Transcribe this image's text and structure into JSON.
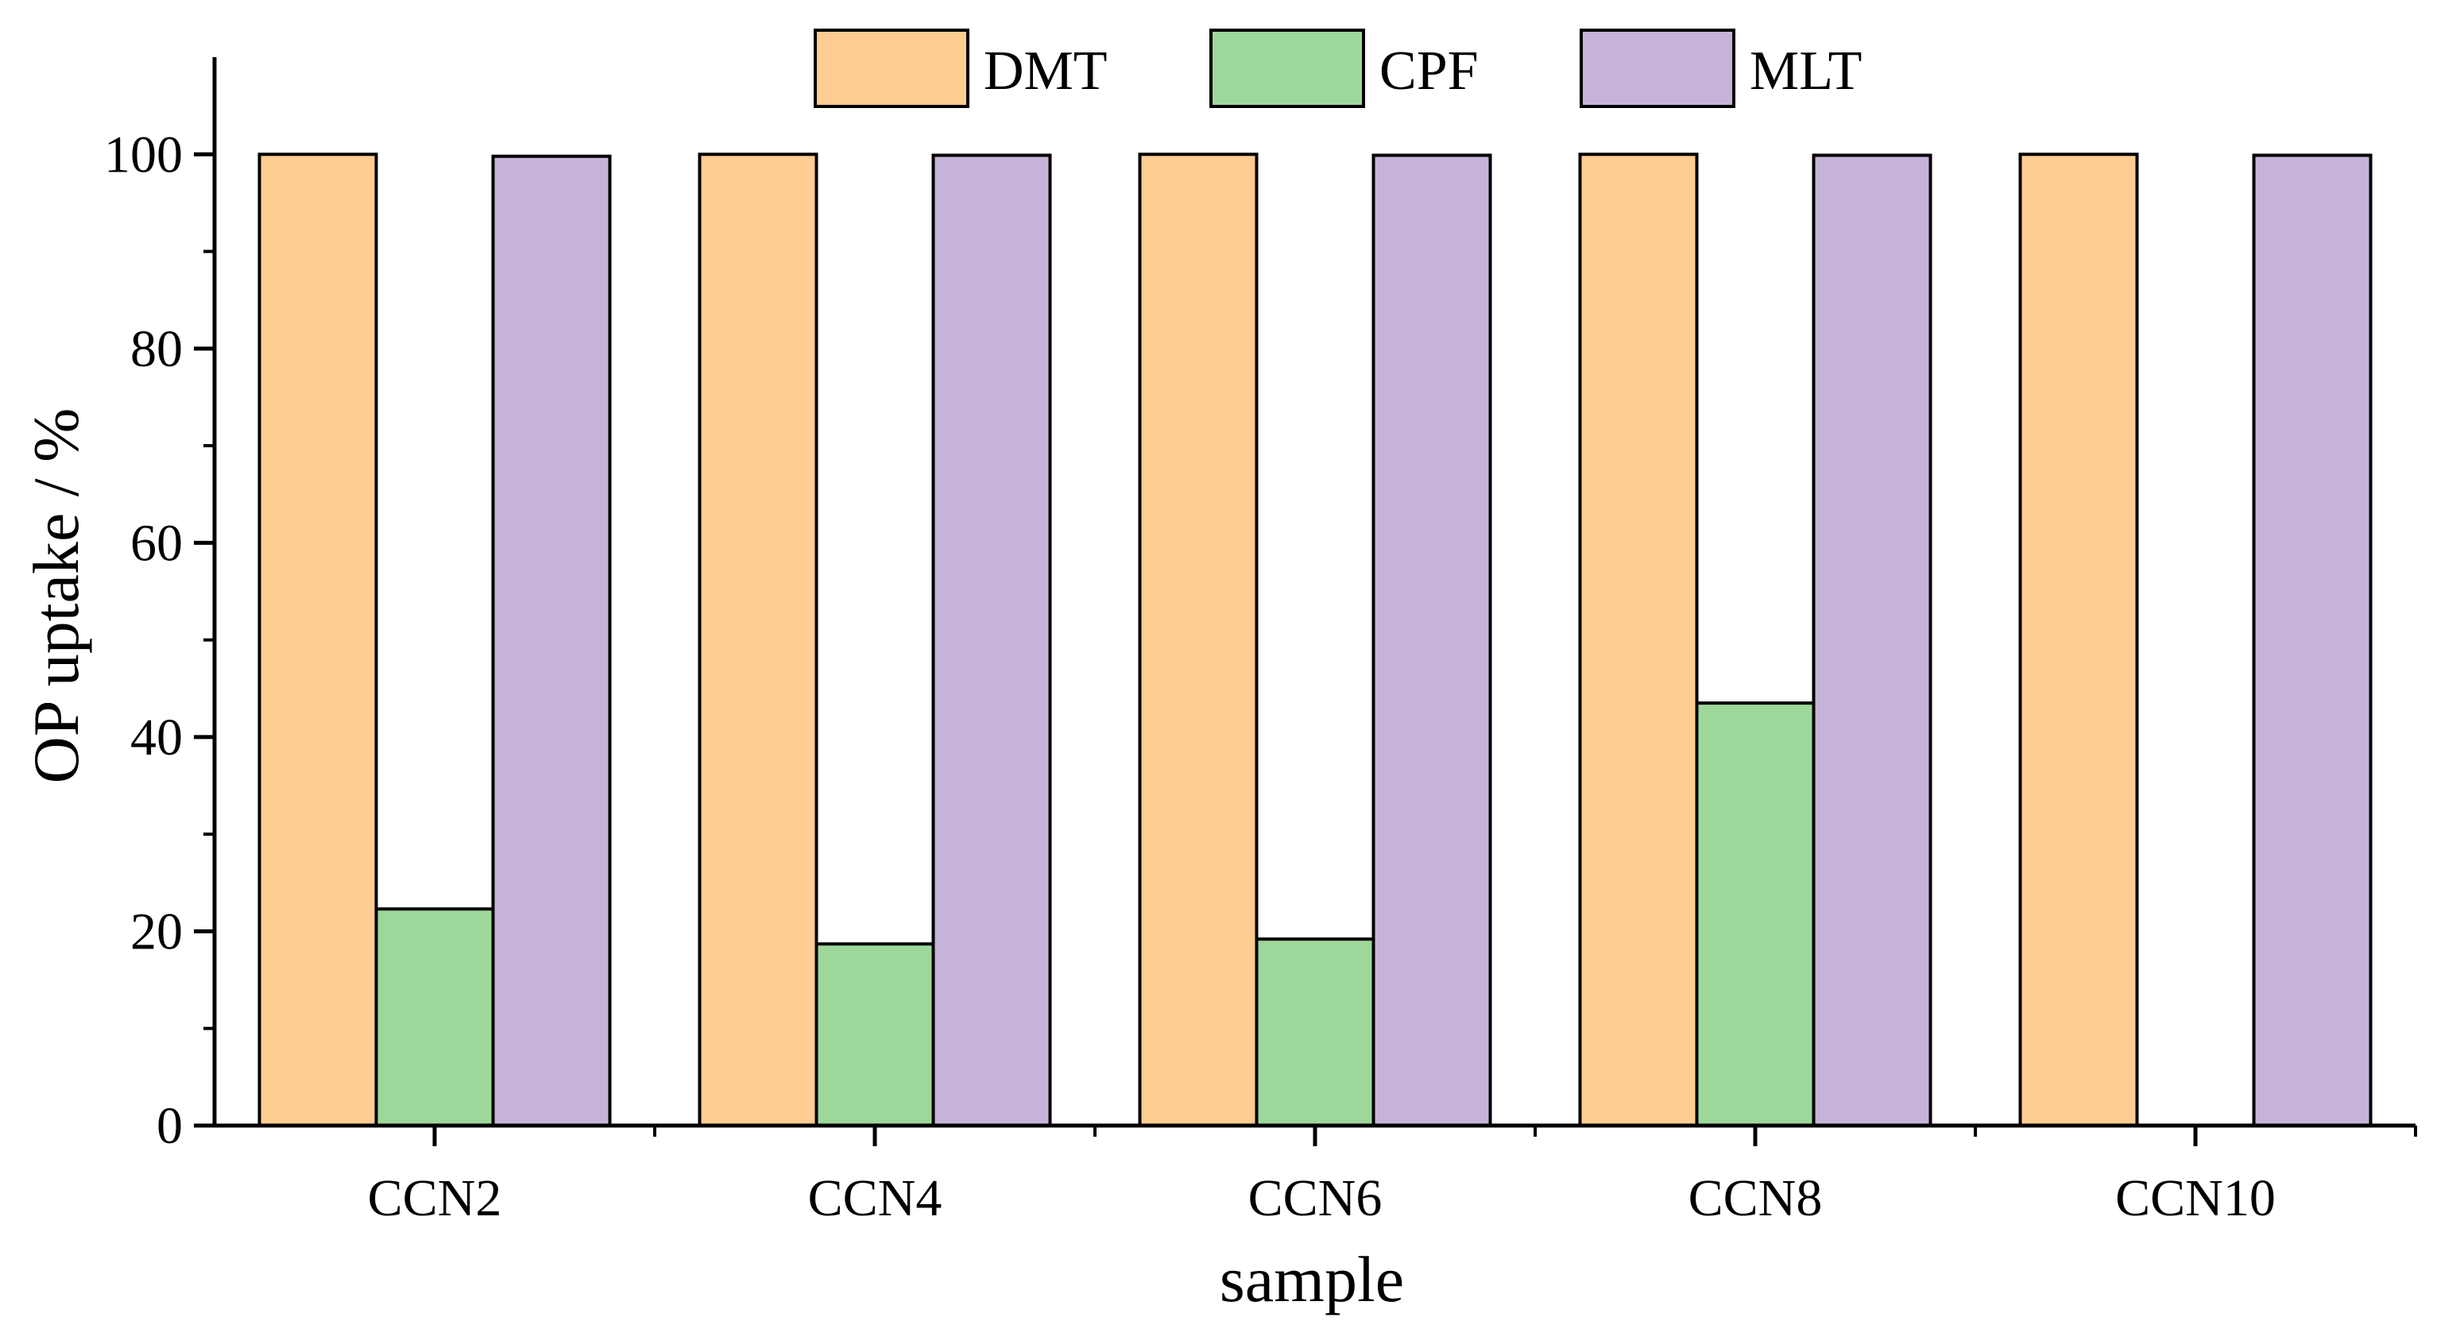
{
  "chart_data": {
    "type": "bar",
    "title": "",
    "xlabel": "sample",
    "ylabel": "OP uptake / %",
    "categories": [
      "CCN2",
      "CCN4",
      "CCN6",
      "CCN8",
      "CCN10"
    ],
    "series": [
      {
        "name": "DMT",
        "color": "#FFCC91",
        "values": [
          100,
          100,
          100,
          100,
          100
        ]
      },
      {
        "name": "CPF",
        "color": "#9ED79A",
        "values": [
          22.3,
          18.7,
          19.2,
          43.5,
          0
        ]
      },
      {
        "name": "MLT",
        "color": "#C6B4D8",
        "values": [
          99.8,
          99.9,
          99.9,
          99.9,
          99.9
        ]
      }
    ],
    "ylim": [
      0,
      110
    ],
    "yticks": [
      0,
      20,
      40,
      60,
      80,
      100
    ],
    "ytick_labels": [
      "0",
      "20",
      "40",
      "60",
      "80",
      "100"
    ],
    "legend": "top-center",
    "grid": false
  }
}
